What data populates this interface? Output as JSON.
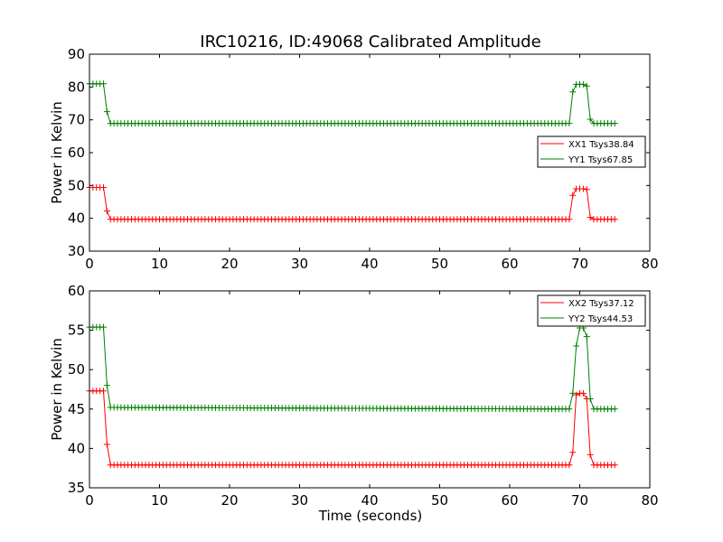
{
  "chart_data": {
    "type": "line",
    "title": "IRC10216, ID:49068 Calibrated Amplitude",
    "panels": [
      {
        "xlabel": "",
        "ylabel": "Power in Kelvin",
        "xlim": [
          0,
          80
        ],
        "ylim": [
          30,
          90
        ],
        "xticks": [
          0,
          10,
          20,
          30,
          40,
          50,
          60,
          70,
          80
        ],
        "yticks": [
          30,
          40,
          50,
          60,
          70,
          80,
          90
        ],
        "grid": false,
        "legend": "center-right",
        "x": [
          0,
          0.5,
          1,
          1.5,
          2,
          2.5,
          3,
          3.5,
          4,
          68.5,
          69,
          69.5,
          70,
          70.5,
          71,
          71.5,
          72,
          75
        ],
        "series": [
          {
            "name": "XX1 Tsys38.84",
            "color": "#ff0000",
            "values": [
              49.4,
              49.4,
              49.4,
              49.4,
              49.4,
              42.2,
              39.7,
              39.7,
              39.7,
              39.7,
              47.0,
              49.0,
              49.0,
              49.0,
              48.8,
              40.3,
              39.7,
              39.7
            ]
          },
          {
            "name": "YY1 Tsys67.85",
            "color": "#008000",
            "values": [
              81.0,
              81.0,
              81.0,
              81.0,
              81.0,
              72.5,
              68.9,
              68.9,
              68.9,
              68.9,
              78.5,
              80.8,
              80.8,
              80.8,
              80.3,
              70.2,
              68.9,
              68.9
            ]
          }
        ]
      },
      {
        "xlabel": "Time (seconds)",
        "ylabel": "Power in Kelvin",
        "xlim": [
          0,
          80
        ],
        "ylim": [
          35,
          60
        ],
        "xticks": [
          0,
          10,
          20,
          30,
          40,
          50,
          60,
          70,
          80
        ],
        "yticks": [
          35,
          40,
          45,
          50,
          55,
          60
        ],
        "grid": false,
        "legend": "top-right",
        "x": [
          0,
          0.5,
          1,
          1.5,
          2,
          2.5,
          3,
          3.5,
          4,
          68.5,
          69,
          69.5,
          70,
          70.5,
          71,
          71.5,
          72,
          75
        ],
        "series": [
          {
            "name": "XX2 Tsys37.12",
            "color": "#ff0000",
            "values": [
              47.3,
              47.3,
              47.3,
              47.3,
              47.3,
              40.5,
              37.9,
              37.9,
              37.9,
              37.9,
              39.5,
              46.8,
              47.0,
              47.0,
              46.3,
              39.2,
              37.9,
              37.9
            ]
          },
          {
            "name": "YY2 Tsys44.53",
            "color": "#008000",
            "values": [
              55.4,
              55.4,
              55.4,
              55.4,
              55.4,
              48.0,
              45.2,
              45.2,
              45.2,
              45.0,
              47.0,
              53.0,
              55.3,
              55.3,
              54.2,
              46.3,
              45.0,
              45.0
            ]
          }
        ]
      }
    ]
  }
}
